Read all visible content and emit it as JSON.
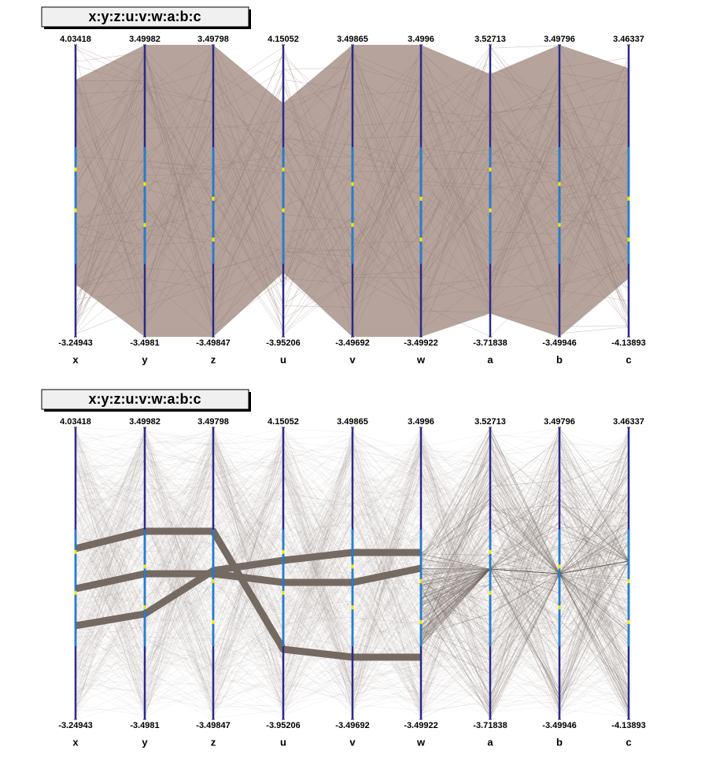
{
  "chart_data": [
    {
      "type": "parallel",
      "title": "x:y:z:u:v:w:a:b:c",
      "axes": [
        {
          "name": "x",
          "max": 4.03418,
          "min": -3.24943
        },
        {
          "name": "y",
          "max": 3.49982,
          "min": -3.4981
        },
        {
          "name": "z",
          "max": 3.49798,
          "min": -3.49847
        },
        {
          "name": "u",
          "max": 4.15052,
          "min": -3.95206
        },
        {
          "name": "v",
          "max": 3.49865,
          "min": -3.49692
        },
        {
          "name": "w",
          "max": 3.4996,
          "min": -3.49922
        },
        {
          "name": "a",
          "max": 3.52713,
          "min": -3.71838
        },
        {
          "name": "b",
          "max": 3.49796,
          "min": -3.49946
        },
        {
          "name": "c",
          "max": 3.46337,
          "min": -4.13893
        }
      ]
    },
    {
      "type": "parallel",
      "title": "x:y:z:u:v:w:a:b:c",
      "axes": [
        {
          "name": "x",
          "max": 4.03418,
          "min": -3.24943
        },
        {
          "name": "y",
          "max": 3.49982,
          "min": -3.4981
        },
        {
          "name": "z",
          "max": 3.49798,
          "min": -3.49847
        },
        {
          "name": "u",
          "max": 4.15052,
          "min": -3.95206
        },
        {
          "name": "v",
          "max": 3.49865,
          "min": -3.49692
        },
        {
          "name": "w",
          "max": 3.4996,
          "min": -3.49922
        },
        {
          "name": "a",
          "max": 3.52713,
          "min": -3.71838
        },
        {
          "name": "b",
          "max": 3.49796,
          "min": -3.49946
        },
        {
          "name": "c",
          "max": 3.46337,
          "min": -4.13893
        }
      ]
    }
  ]
}
